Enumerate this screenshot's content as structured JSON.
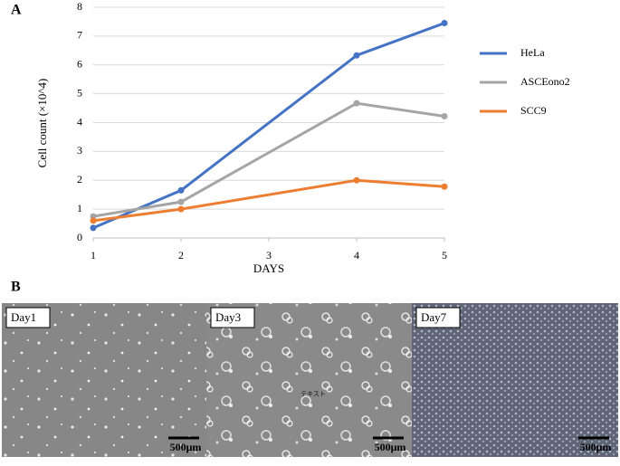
{
  "panel_labels": [
    "A",
    "B"
  ],
  "chart_data": {
    "type": "line",
    "x_label": "DAYS",
    "y_label": "Cell count (×10^4)",
    "x": [
      1,
      2,
      4,
      5
    ],
    "series": [
      {
        "name": "HeLa",
        "color": "#4472c4",
        "values": [
          0.35,
          1.65,
          6.33,
          7.45
        ]
      },
      {
        "name": "ASCEono2",
        "color": "#a5a5a5",
        "values": [
          0.75,
          1.25,
          4.67,
          4.22
        ]
      },
      {
        "name": "SCC9",
        "color": "#ed7d31",
        "values": [
          0.6,
          1.0,
          2.0,
          1.78
        ]
      }
    ],
    "xlim": [
      1,
      5
    ],
    "xticks": [
      1,
      2,
      3,
      4,
      5
    ],
    "ylim": [
      0,
      8
    ],
    "yticks": [
      0,
      1,
      2,
      3,
      4,
      5,
      6,
      7,
      8
    ],
    "grid": true,
    "legend": "right"
  },
  "images": [
    {
      "label": "Day1",
      "scale_bar": "500μm"
    },
    {
      "label": "Day3",
      "scale_bar": "500μm",
      "overlay_text": "テキスト"
    },
    {
      "label": "Day7",
      "scale_bar": "500μm"
    }
  ]
}
